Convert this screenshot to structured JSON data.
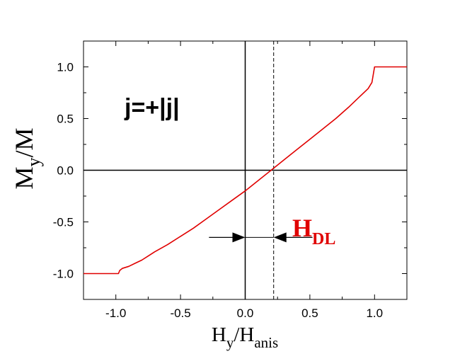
{
  "chart_data": {
    "type": "line",
    "xlabel": {
      "main": "H",
      "sub_main": "y",
      "sep": "/H",
      "sub_sep": "anis"
    },
    "ylabel": {
      "main": "M",
      "sub_main": "y",
      "rest": "/M"
    },
    "xlim": [
      -1.25,
      1.25
    ],
    "ylim": [
      -1.25,
      1.25
    ],
    "x_ticks": [
      -1.0,
      -0.5,
      0.0,
      0.5,
      1.0
    ],
    "x_tick_labels": [
      "-1.0",
      "-0.5",
      "0.0",
      "0.5",
      "1.0"
    ],
    "y_ticks": [
      -1.0,
      -0.5,
      0.0,
      0.5,
      1.0
    ],
    "y_tick_labels": [
      "-1.0",
      "-0.5",
      "0.0",
      "0.5",
      "1.0"
    ],
    "grid": false,
    "series": [
      {
        "color": "#e00000",
        "x": [
          -1.25,
          -0.98,
          -0.97,
          -0.95,
          -0.9,
          -0.85,
          -0.8,
          -0.75,
          -0.7,
          -0.6,
          -0.5,
          -0.4,
          -0.3,
          -0.2,
          -0.1,
          0.0,
          0.1,
          0.2,
          0.22,
          0.3,
          0.4,
          0.5,
          0.6,
          0.7,
          0.8,
          0.9,
          0.95,
          0.98,
          1.0,
          1.25
        ],
        "y": [
          -1.0,
          -1.0,
          -0.97,
          -0.95,
          -0.93,
          -0.9,
          -0.87,
          -0.83,
          -0.79,
          -0.72,
          -0.64,
          -0.56,
          -0.47,
          -0.38,
          -0.29,
          -0.2,
          -0.1,
          0.0,
          0.02,
          0.1,
          0.2,
          0.3,
          0.4,
          0.5,
          0.61,
          0.73,
          0.79,
          0.85,
          1.0,
          1.0
        ]
      }
    ],
    "reference_lines": {
      "horizontal_zero": 0.0,
      "vertical_zero": 0.0,
      "dashed_vertical_x": 0.22
    },
    "annotations": {
      "current_label": "j=+|j|",
      "field_label_main": "H",
      "field_label_sub": "DL",
      "field_label_color": "#e00000",
      "arrow_left_from_x": -0.28,
      "arrow_right_from_x": 0.52,
      "arrow_y": -0.65
    }
  }
}
